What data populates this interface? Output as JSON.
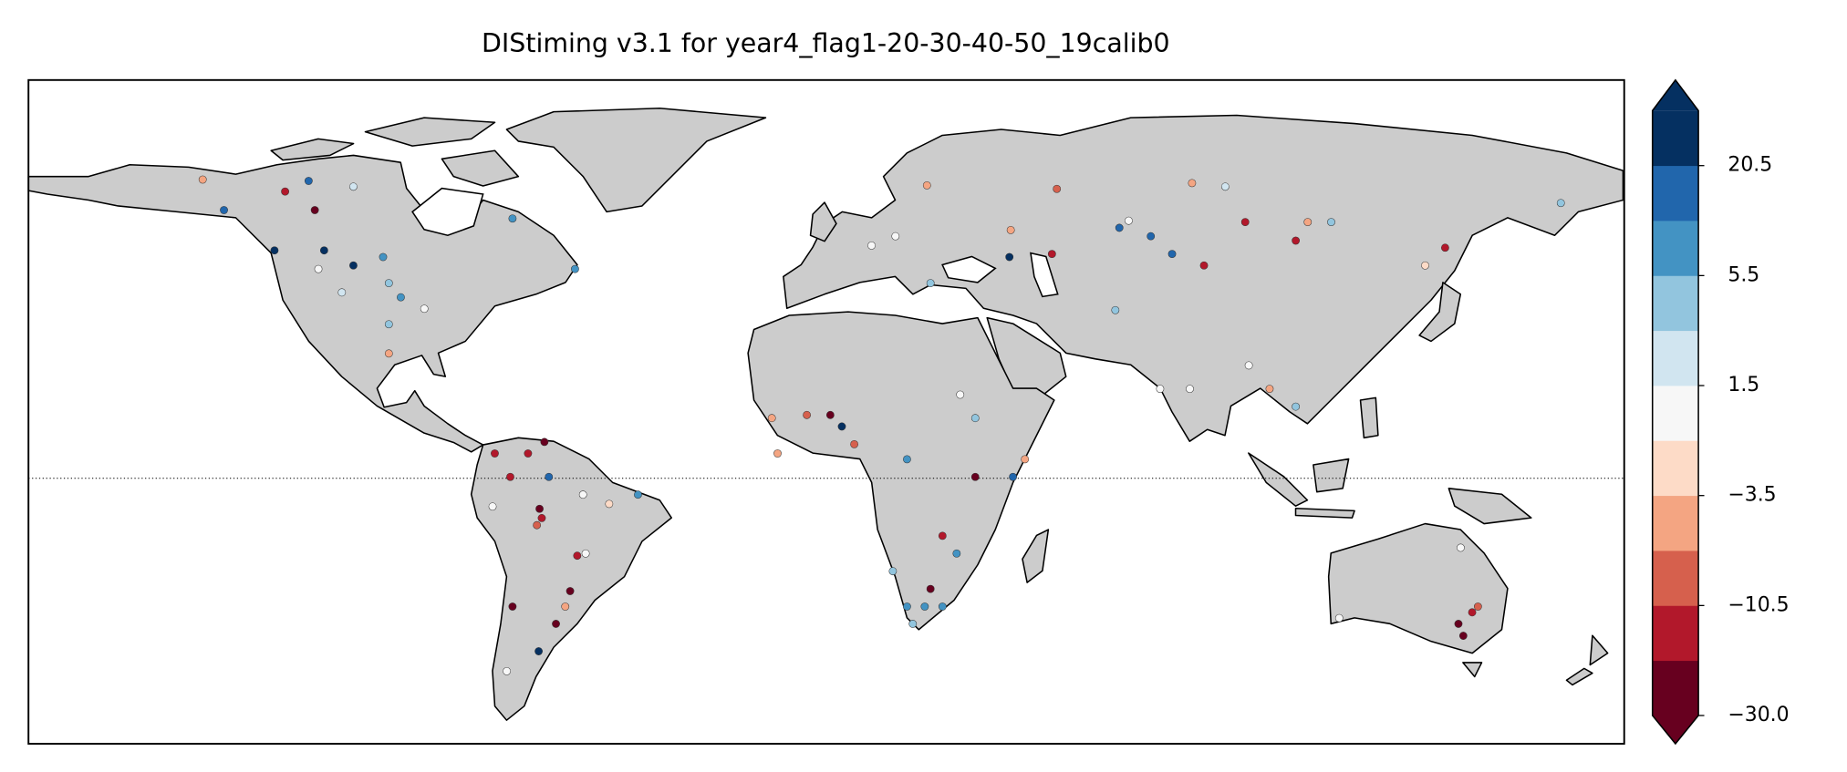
{
  "chart_data": {
    "type": "scatter",
    "title": "DIStiming v3.1 for year4_flag1-20-30-40-50_19calib0",
    "xlim": [
      -180,
      180
    ],
    "ylim": [
      -60,
      90
    ],
    "x": [
      -122.1,
      -115.4,
      -116.8,
      -135.9,
      -124.5,
      -113.3,
      -106.7,
      -100.0,
      -98.7,
      -96.0,
      -90.7,
      -98.7,
      -98.7,
      -109.3,
      -114.6,
      -70.8,
      -56.7,
      -106.7,
      -140.7,
      -63.6,
      -67.3,
      -74.8,
      -71.3,
      -62.6,
      -54.9,
      -49.0,
      -64.7,
      -64.2,
      -65.3,
      -54.3,
      -56.2,
      -57.8,
      -61.0,
      -58.9,
      -64.9,
      -70.8,
      -72.1,
      -75.3,
      -42.5,
      10.2,
      15.6,
      23.5,
      22.7,
      41.6,
      41.3,
      50.9,
      52.0,
      66.1,
      68.2,
      73.2,
      78.0,
      85.2,
      94.5,
      105.9,
      108.6,
      113.9,
      90.0,
      82.5,
      135.1,
      139.6,
      65.2,
      75.3,
      82.0,
      100.0,
      105.9,
      95.3,
      165.7,
      0.9,
      3.5,
      6.3,
      -4.4,
      -12.3,
      -11.0,
      30.2,
      33.6,
      18.2,
      33.6,
      42.1,
      44.8,
      26.2,
      29.4,
      23.5,
      18.2,
      22.2,
      26.2,
      19.5,
      15.0,
      145.7,
      142.6,
      147.0,
      143.7,
      143.1,
      115.7
    ],
    "y": [
      64.8,
      60.6,
      67.2,
      60.6,
      51.5,
      51.5,
      48.1,
      50.0,
      44.1,
      40.9,
      38.3,
      34.8,
      28.2,
      42.0,
      47.3,
      58.7,
      47.3,
      65.9,
      67.5,
      8.2,
      5.6,
      5.6,
      0.3,
      0.3,
      -3.7,
      -5.8,
      -6.9,
      -9.0,
      -10.6,
      -17.0,
      -17.5,
      -25.5,
      -32.9,
      -29.0,
      -39.1,
      -29.0,
      -43.6,
      -6.4,
      -3.7,
      52.6,
      54.7,
      44.1,
      66.2,
      56.1,
      50.0,
      50.7,
      65.4,
      56.6,
      58.2,
      54.7,
      50.7,
      48.1,
      57.9,
      53.7,
      57.9,
      57.9,
      65.9,
      66.7,
      48.1,
      52.1,
      38.0,
      20.2,
      20.2,
      20.2,
      16.2,
      25.5,
      62.2,
      14.3,
      11.7,
      7.7,
      14.3,
      13.6,
      5.6,
      18.9,
      13.6,
      4.3,
      0.3,
      0.3,
      4.3,
      -13.0,
      -17.0,
      -25.0,
      -29.0,
      -29.0,
      -29.0,
      -32.9,
      -21.0,
      -30.3,
      -32.9,
      -29.0,
      -35.6,
      -15.7,
      -31.6
    ],
    "values": [
      -15,
      -25,
      15,
      15,
      25,
      25,
      25,
      8,
      4.5,
      8,
      0,
      4.5,
      -5,
      2.5,
      0,
      8,
      8,
      2.5,
      -5,
      -25,
      -15,
      -15,
      -15,
      15,
      0,
      -2,
      -25,
      -15,
      -8,
      0,
      -15,
      -25,
      -25,
      -5,
      25,
      -25,
      0,
      0,
      8,
      0,
      0,
      4.5,
      -5,
      -5,
      25,
      -15,
      -8,
      15,
      0,
      15,
      15,
      -15,
      -15,
      -15,
      -5,
      4.5,
      2.5,
      -5,
      -2,
      -15,
      4.5,
      0,
      0,
      -5,
      4.5,
      0,
      4.5,
      -25,
      25,
      -8,
      -8,
      -5,
      -5,
      0,
      4.5,
      8,
      -25,
      15,
      -5,
      -15,
      8,
      -25,
      8,
      8,
      8,
      4.5,
      4.5,
      -15,
      -25,
      -8,
      -25,
      0,
      0
    ],
    "colors": [
      "#b2182b",
      "#67001f",
      "#2166ac",
      "#2166ac",
      "#053061",
      "#053061",
      "#053061",
      "#4393c3",
      "#92c5de",
      "#4393c3",
      "#f7f7f7",
      "#92c5de",
      "#f4a582",
      "#d1e5f0",
      "#f7f7f7",
      "#4393c3",
      "#4393c3",
      "#d1e5f0",
      "#f4a582",
      "#67001f",
      "#b2182b",
      "#b2182b",
      "#b2182b",
      "#2166ac",
      "#f7f7f7",
      "#fddbc7",
      "#67001f",
      "#b2182b",
      "#d6604d",
      "#f7f7f7",
      "#b2182b",
      "#67001f",
      "#67001f",
      "#f4a582",
      "#053061",
      "#67001f",
      "#f7f7f7",
      "#f7f7f7",
      "#4393c3",
      "#f7f7f7",
      "#f7f7f7",
      "#92c5de",
      "#f4a582",
      "#f4a582",
      "#053061",
      "#b2182b",
      "#d6604d",
      "#2166ac",
      "#f7f7f7",
      "#2166ac",
      "#2166ac",
      "#b2182b",
      "#b2182b",
      "#b2182b",
      "#f4a582",
      "#92c5de",
      "#d1e5f0",
      "#f4a582",
      "#fddbc7",
      "#b2182b",
      "#92c5de",
      "#f7f7f7",
      "#f7f7f7",
      "#f4a582",
      "#92c5de",
      "#f7f7f7",
      "#92c5de",
      "#67001f",
      "#053061",
      "#d6604d",
      "#d6604d",
      "#f4a582",
      "#f4a582",
      "#f7f7f7",
      "#92c5de",
      "#4393c3",
      "#67001f",
      "#2166ac",
      "#f4a582",
      "#b2182b",
      "#4393c3",
      "#67001f",
      "#4393c3",
      "#4393c3",
      "#4393c3",
      "#92c5de",
      "#92c5de",
      "#b2182b",
      "#67001f",
      "#d6604d",
      "#67001f",
      "#f7f7f7",
      "#f7f7f7"
    ],
    "land_color": "#cccccc",
    "colorbar": {
      "colors": [
        "#67001f",
        "#b2182b",
        "#d6604d",
        "#f4a582",
        "#fddbc7",
        "#f7f7f7",
        "#d1e5f0",
        "#92c5de",
        "#4393c3",
        "#2166ac",
        "#053061"
      ],
      "ticks": [
        {
          "value": -30,
          "label": "−30.0"
        },
        {
          "value": -10.5,
          "label": "−10.5"
        },
        {
          "value": -3.5,
          "label": "−3.5"
        },
        1.5,
        5.5,
        20.5
      ]
    }
  }
}
